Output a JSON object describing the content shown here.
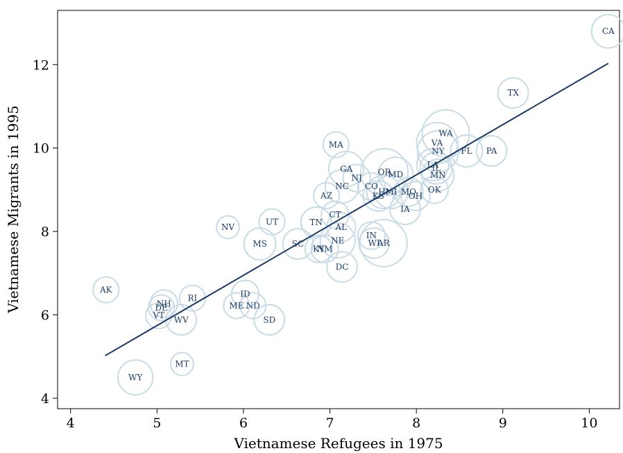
{
  "chart_data": {
    "type": "scatter",
    "title": "",
    "xlabel": "Vietnamese Refugees in 1975",
    "ylabel": "Vietnamese Migrants in 1995",
    "xlim": [
      3.85,
      10.35
    ],
    "ylim": [
      3.75,
      13.3
    ],
    "xticks": [
      4,
      5,
      6,
      7,
      8,
      9,
      10
    ],
    "yticks": [
      4,
      6,
      8,
      10,
      12
    ],
    "grid": false,
    "legend": "none",
    "marker_color": "#c9dce6",
    "line_color": "#1a3a66",
    "fit_line": {
      "x": [
        4.4,
        10.22
      ],
      "y": [
        5.02,
        12.03
      ]
    },
    "points": [
      {
        "label": "CA",
        "x": 10.22,
        "y": 12.8,
        "w": 0.55
      },
      {
        "label": "TX",
        "x": 9.12,
        "y": 11.32,
        "w": 0.45
      },
      {
        "label": "WA",
        "x": 8.34,
        "y": 10.35,
        "w": 1.0
      },
      {
        "label": "VA",
        "x": 8.24,
        "y": 10.12,
        "w": 0.8
      },
      {
        "label": "NY",
        "x": 8.25,
        "y": 9.92,
        "w": 0.8
      },
      {
        "label": "FL",
        "x": 8.58,
        "y": 9.93,
        "w": 0.5
      },
      {
        "label": "PA",
        "x": 8.87,
        "y": 9.93,
        "w": 0.45
      },
      {
        "label": "LA",
        "x": 8.19,
        "y": 9.6,
        "w": 0.5
      },
      {
        "label": "IL",
        "x": 8.23,
        "y": 9.52,
        "w": 0.5
      },
      {
        "label": "MN",
        "x": 8.25,
        "y": 9.35,
        "w": 0.5
      },
      {
        "label": "OK",
        "x": 8.21,
        "y": 9.0,
        "w": 0.35
      },
      {
        "label": "MA",
        "x": 7.07,
        "y": 10.08,
        "w": 0.3
      },
      {
        "label": "GA",
        "x": 7.19,
        "y": 9.5,
        "w": 0.6
      },
      {
        "label": "NJ",
        "x": 7.31,
        "y": 9.28,
        "w": 0.35
      },
      {
        "label": "NC",
        "x": 7.14,
        "y": 9.08,
        "w": 0.55
      },
      {
        "label": "OR",
        "x": 7.63,
        "y": 9.42,
        "w": 1.0
      },
      {
        "label": "MD",
        "x": 7.76,
        "y": 9.36,
        "w": 0.6
      },
      {
        "label": "CO",
        "x": 7.48,
        "y": 9.08,
        "w": 0.35
      },
      {
        "label": "HI",
        "x": 7.62,
        "y": 8.95,
        "w": 0.55
      },
      {
        "label": "MI",
        "x": 7.71,
        "y": 8.95,
        "w": 0.55
      },
      {
        "label": "KS",
        "x": 7.56,
        "y": 8.85,
        "w": 0.45
      },
      {
        "label": "MO",
        "x": 7.91,
        "y": 8.95,
        "w": 0.4
      },
      {
        "label": "OH",
        "x": 7.99,
        "y": 8.85,
        "w": 0.4
      },
      {
        "label": "IA",
        "x": 7.87,
        "y": 8.53,
        "w": 0.45
      },
      {
        "label": "AZ",
        "x": 6.96,
        "y": 8.86,
        "w": 0.3
      },
      {
        "label": "CT",
        "x": 7.06,
        "y": 8.4,
        "w": 0.35
      },
      {
        "label": "TN",
        "x": 6.84,
        "y": 8.22,
        "w": 0.45
      },
      {
        "label": "AL",
        "x": 7.13,
        "y": 8.1,
        "w": 0.4
      },
      {
        "label": "NE",
        "x": 7.09,
        "y": 7.78,
        "w": 0.6
      },
      {
        "label": "IN",
        "x": 7.48,
        "y": 7.9,
        "w": 0.35
      },
      {
        "label": "WI",
        "x": 7.51,
        "y": 7.72,
        "w": 0.45
      },
      {
        "label": "AR",
        "x": 7.62,
        "y": 7.72,
        "w": 1.0
      },
      {
        "label": "UT",
        "x": 6.33,
        "y": 8.23,
        "w": 0.3
      },
      {
        "label": "NV",
        "x": 5.82,
        "y": 8.1,
        "w": 0.2
      },
      {
        "label": "MS",
        "x": 6.19,
        "y": 7.7,
        "w": 0.5
      },
      {
        "label": "SC",
        "x": 6.63,
        "y": 7.7,
        "w": 0.45
      },
      {
        "label": "KY",
        "x": 6.87,
        "y": 7.58,
        "w": 0.35
      },
      {
        "label": "NM",
        "x": 6.94,
        "y": 7.58,
        "w": 0.35
      },
      {
        "label": "DC",
        "x": 7.14,
        "y": 7.15,
        "w": 0.45
      },
      {
        "label": "AK",
        "x": 4.41,
        "y": 6.6,
        "w": 0.3
      },
      {
        "label": "NH",
        "x": 5.08,
        "y": 6.27,
        "w": 0.35
      },
      {
        "label": "DE",
        "x": 5.05,
        "y": 6.17,
        "w": 0.3
      },
      {
        "label": "VT",
        "x": 5.02,
        "y": 5.98,
        "w": 0.3
      },
      {
        "label": "WV",
        "x": 5.28,
        "y": 5.88,
        "w": 0.45
      },
      {
        "label": "RI",
        "x": 5.41,
        "y": 6.4,
        "w": 0.3
      },
      {
        "label": "ID",
        "x": 6.02,
        "y": 6.5,
        "w": 0.35
      },
      {
        "label": "ME",
        "x": 5.92,
        "y": 6.22,
        "w": 0.3
      },
      {
        "label": "ND",
        "x": 6.11,
        "y": 6.22,
        "w": 0.3
      },
      {
        "label": "SD",
        "x": 6.3,
        "y": 5.88,
        "w": 0.45
      },
      {
        "label": "MT",
        "x": 5.29,
        "y": 4.82,
        "w": 0.2
      },
      {
        "label": "WY",
        "x": 4.75,
        "y": 4.5,
        "w": 0.6
      }
    ]
  }
}
